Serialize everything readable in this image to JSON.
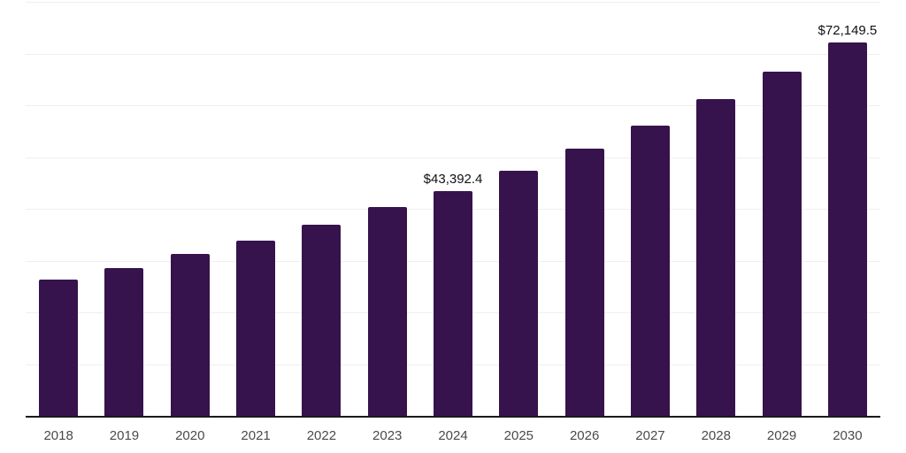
{
  "chart_data": {
    "type": "bar",
    "title": "",
    "xlabel": "",
    "ylabel": "",
    "categories": [
      "2018",
      "2019",
      "2020",
      "2021",
      "2022",
      "2023",
      "2024",
      "2025",
      "2026",
      "2027",
      "2028",
      "2029",
      "2030"
    ],
    "values": [
      26300,
      28600,
      31300,
      33900,
      37000,
      40300,
      43392.4,
      47400,
      51650,
      56150,
      61200,
      66500,
      72149.5
    ],
    "data_labels": [
      "",
      "",
      "",
      "",
      "",
      "",
      "$43,392.4",
      "",
      "",
      "",
      "",
      "",
      "$72,149.5"
    ],
    "ylim": [
      0,
      80000
    ],
    "gridline_step": 10000,
    "grid": "horizontal",
    "legend": null,
    "bar_color": "#36134c",
    "axis_color": "#1a1a1a",
    "gridline_color": "#efefef",
    "tick_label_color": "#4a4a4a",
    "data_label_color": "#111111",
    "background_color": "#ffffff"
  }
}
